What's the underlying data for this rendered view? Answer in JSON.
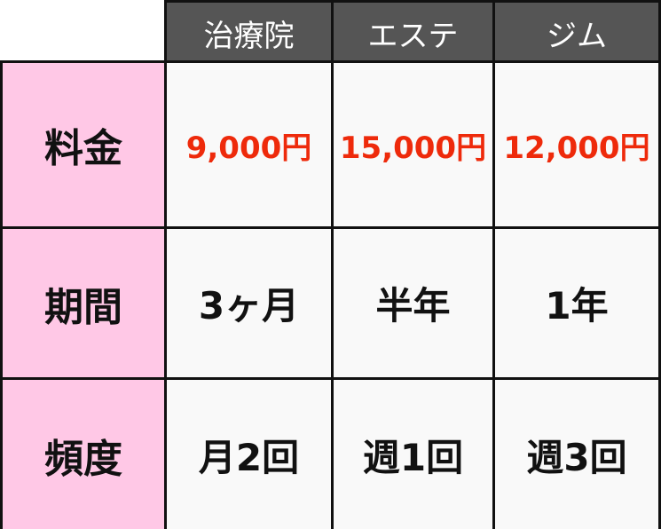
{
  "columns": [
    "治療院",
    "エステ",
    "ジム"
  ],
  "rows": [
    {
      "label": "料金",
      "values": [
        "9,000円",
        "15,000円",
        "12,000円"
      ]
    },
    {
      "label": "期間",
      "values": [
        "3ヶ月",
        "半年",
        "1年"
      ]
    },
    {
      "label": "頻度",
      "values": [
        "月2回",
        "週1回",
        "週3回"
      ]
    }
  ],
  "colors": {
    "header": "#555555",
    "label": "#ffc8e6",
    "cell": "#f9f9f9",
    "price": "#ee2a0b"
  }
}
